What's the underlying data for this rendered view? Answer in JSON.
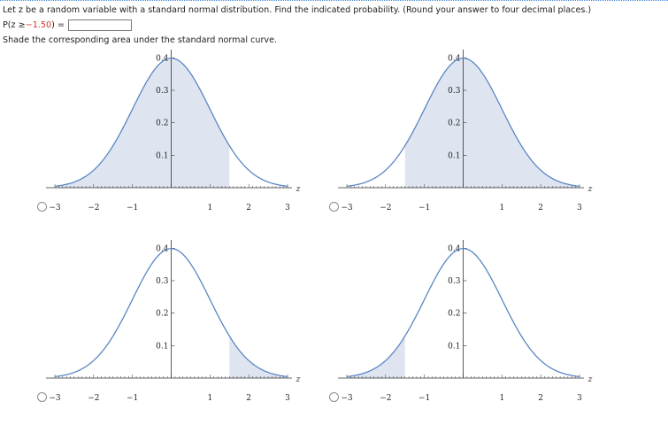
{
  "problem": {
    "statement": "Let z be a random variable with a standard normal distribution. Find the indicated probability. (Round your answer to four decimal places.)",
    "prob_prefix": "P(z ≥ ",
    "prob_value": "−1.50",
    "prob_suffix": ") =",
    "answer": "",
    "instruction": "Shade the corresponding area under the standard normal curve."
  },
  "colors": {
    "curve": "#5b86c4",
    "shade": "#dfe5f0",
    "axis": "#333333",
    "radio_border": "#8c8c8c"
  },
  "graphs": [
    {
      "id": "A",
      "shade_from": -3,
      "shade_to": 1.5,
      "radio_label": ""
    },
    {
      "id": "B",
      "shade_from": -1.5,
      "shade_to": 3,
      "radio_label": ""
    },
    {
      "id": "C",
      "shade_from": 1.5,
      "shade_to": 3,
      "radio_label": ""
    },
    {
      "id": "D",
      "shade_from": -3,
      "shade_to": -1.5,
      "radio_label": ""
    }
  ],
  "chart_data": {
    "type": "area",
    "x_axis": {
      "label": "z",
      "range": [
        -3,
        3
      ],
      "tick_labels": [
        "−3",
        "−2",
        "−1",
        "1",
        "2",
        "3"
      ]
    },
    "y_axis": {
      "label": "",
      "range": [
        0,
        0.4
      ],
      "tick_labels": [
        "0.1",
        "0.2",
        "0.3",
        "0.4"
      ]
    },
    "curve": "standard normal density",
    "shaded_regions": [
      {
        "graph": "A",
        "from": -3,
        "to": 1.5
      },
      {
        "graph": "B",
        "from": -1.5,
        "to": 3
      },
      {
        "graph": "C",
        "from": 1.5,
        "to": 3
      },
      {
        "graph": "D",
        "from": -3,
        "to": -1.5
      }
    ]
  }
}
